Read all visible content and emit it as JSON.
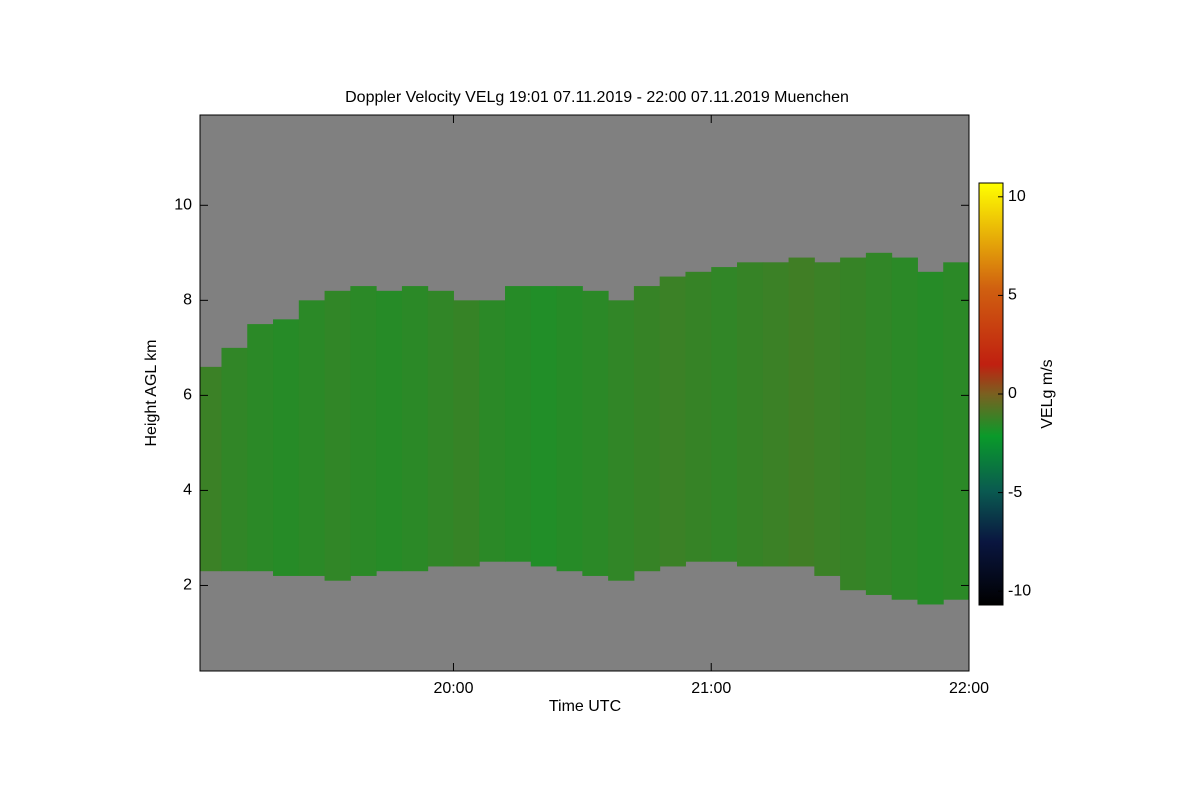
{
  "chart_data": {
    "type": "time-height",
    "title": "Doppler Velocity VELg   19:01 07.11.2019 - 22:00 07.11.2019 Muenchen",
    "x_label": "Time UTC",
    "y_label": "Height AGL km",
    "colorbar_label": "VELg m/s",
    "xlim": [
      19.0167,
      22.0
    ],
    "xticks": [
      {
        "value": 20,
        "label": "20:00"
      },
      {
        "value": 21,
        "label": "21:00"
      },
      {
        "value": 22,
        "label": "22:00"
      }
    ],
    "ylim": [
      0.2,
      11.9
    ],
    "yticks": [
      2,
      4,
      6,
      8,
      10
    ],
    "zlim": [
      -10.7,
      10.7
    ],
    "zticks": [
      10,
      5,
      0,
      -5,
      -10
    ],
    "x": [
      19.05,
      19.15,
      19.25,
      19.35,
      19.45,
      19.55,
      19.65,
      19.75,
      19.85,
      19.95,
      20.05,
      20.15,
      20.25,
      20.35,
      20.45,
      20.55,
      20.65,
      20.75,
      20.85,
      20.95,
      21.05,
      21.15,
      21.25,
      21.35,
      21.45,
      21.55,
      21.65,
      21.75,
      21.85,
      21.95
    ],
    "top": [
      6.6,
      7.0,
      7.5,
      7.6,
      8.0,
      8.2,
      8.3,
      8.2,
      8.3,
      8.2,
      8.0,
      8.0,
      8.3,
      8.3,
      8.3,
      8.2,
      8.0,
      8.3,
      8.5,
      8.6,
      8.7,
      8.8,
      8.8,
      8.9,
      8.8,
      8.9,
      9.0,
      8.9,
      8.6,
      8.8
    ],
    "base": [
      2.3,
      2.3,
      2.3,
      2.2,
      2.2,
      2.1,
      2.2,
      2.3,
      2.3,
      2.4,
      2.4,
      2.5,
      2.5,
      2.4,
      2.3,
      2.2,
      2.1,
      2.3,
      2.4,
      2.5,
      2.5,
      2.4,
      2.4,
      2.4,
      2.2,
      1.9,
      1.8,
      1.7,
      1.6,
      1.7
    ],
    "values": [
      -1.2,
      -1.4,
      -1.5,
      -1.6,
      -1.5,
      -1.4,
      -1.5,
      -1.6,
      -1.5,
      -1.4,
      -1.3,
      -1.5,
      -1.6,
      -1.7,
      -1.6,
      -1.5,
      -1.4,
      -1.3,
      -1.2,
      -1.3,
      -1.4,
      -1.3,
      -1.2,
      -1.1,
      -1.2,
      -1.3,
      -1.4,
      -1.5,
      -1.6,
      -1.5
    ],
    "background_color": "#808080"
  }
}
